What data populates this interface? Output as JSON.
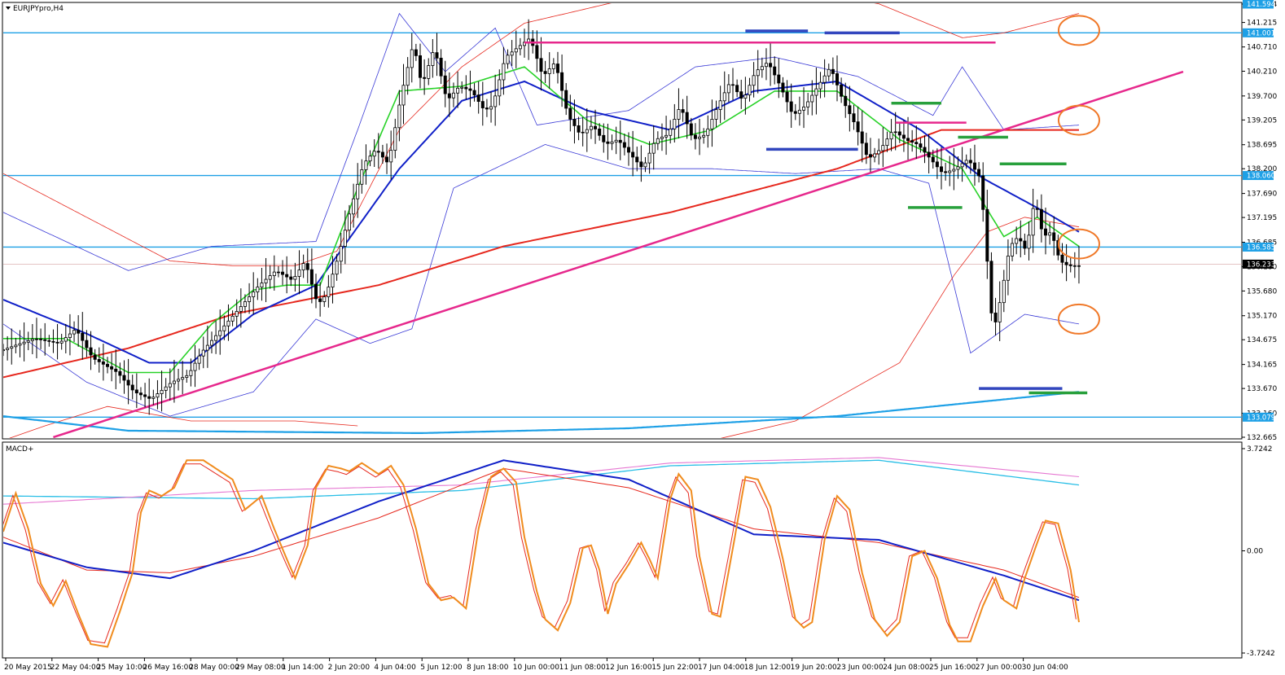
{
  "window": {
    "symbol_title": "EURJPYpro,H4",
    "sub_title": "MACD+"
  },
  "colors": {
    "bg": "#ffffff",
    "frame": "#000000",
    "level_line": "#1ea0e6",
    "price_tag": "#1ea0e6",
    "current_tag": "#000000",
    "bollinger": "#3a3ad6",
    "ma_red": "#e6281e",
    "ma_green": "#28d228",
    "ma_blue": "#1020c8",
    "trendline": "#e6288c",
    "zone_blue": "#3246be",
    "zone_green": "#28a03c",
    "circle": "#f07828",
    "macd_orange": "#f08c1e",
    "macd_red": "#e6281e",
    "macd_blue": "#1020c8",
    "macd_pink": "#e678d2",
    "macd_cyan": "#28bee6"
  },
  "chart_data": {
    "type": "candlestick",
    "title": "EURJPYpro,H4",
    "y_axis_labels": [
      "141.594",
      "141.215",
      "140.710",
      "140.210",
      "139.700",
      "139.205",
      "138.695",
      "138.200",
      "137.690",
      "137.195",
      "136.685",
      "136.180",
      "135.680",
      "135.170",
      "134.675",
      "134.165",
      "133.670",
      "133.160",
      "132.665"
    ],
    "ylim": [
      132.665,
      141.594
    ],
    "x_axis_labels": [
      "20 May 2015",
      "22 May 04:00",
      "25 May 10:00",
      "26 May 16:00",
      "28 May 00:00",
      "29 May 08:00",
      "1 Jun 14:00",
      "2 Jun 20:00",
      "4 Jun 04:00",
      "5 Jun 12:00",
      "8 Jun 18:00",
      "10 Jun 00:00",
      "11 Jun 08:00",
      "12 Jun 16:00",
      "15 Jun 22:00",
      "17 Jun 04:00",
      "18 Jun 12:00",
      "19 Jun 20:00",
      "23 Jun 00:00",
      "24 Jun 08:00",
      "25 Jun 16:00",
      "27 Jun 00:00",
      "30 Jun 04:00"
    ],
    "horizontal_levels": [
      {
        "value": 141.001,
        "label": "141.001"
      },
      {
        "value": 138.06,
        "label": "138.060"
      },
      {
        "value": 136.585,
        "label": "136.585"
      },
      {
        "value": 133.079,
        "label": "133.079"
      }
    ],
    "current_price": {
      "value": 136.233,
      "label": "136.233"
    },
    "top_price_tag": {
      "value": 141.594,
      "label": "141.594"
    },
    "candle_anchors": [
      [
        0,
        134.45
      ],
      [
        8,
        134.7
      ],
      [
        14,
        134.6
      ],
      [
        18,
        134.9
      ],
      [
        22,
        134.3
      ],
      [
        28,
        134.0
      ],
      [
        32,
        133.6
      ],
      [
        36,
        133.45
      ],
      [
        41,
        133.8
      ],
      [
        45,
        133.95
      ],
      [
        48,
        134.4
      ],
      [
        53,
        134.9
      ],
      [
        58,
        135.4
      ],
      [
        62,
        135.8
      ],
      [
        66,
        136.1
      ],
      [
        70,
        135.9
      ],
      [
        73,
        136.3
      ],
      [
        76,
        135.4
      ],
      [
        78,
        135.6
      ],
      [
        81,
        136.4
      ],
      [
        84,
        137.4
      ],
      [
        87,
        138.3
      ],
      [
        90,
        138.6
      ],
      [
        93,
        138.3
      ],
      [
        96,
        139.7
      ],
      [
        99,
        140.8
      ],
      [
        101,
        139.9
      ],
      [
        104,
        140.7
      ],
      [
        107,
        139.6
      ],
      [
        110,
        139.9
      ],
      [
        113,
        139.8
      ],
      [
        116,
        139.4
      ],
      [
        118,
        139.5
      ],
      [
        121,
        140.5
      ],
      [
        124,
        140.7
      ],
      [
        127,
        140.9
      ],
      [
        130,
        140.1
      ],
      [
        133,
        140.4
      ],
      [
        136,
        139.3
      ],
      [
        139,
        138.9
      ],
      [
        142,
        139.1
      ],
      [
        145,
        138.7
      ],
      [
        148,
        138.8
      ],
      [
        151,
        138.5
      ],
      [
        154,
        138.2
      ],
      [
        157,
        138.8
      ],
      [
        160,
        138.9
      ],
      [
        163,
        139.5
      ],
      [
        166,
        138.8
      ],
      [
        169,
        138.9
      ],
      [
        172,
        139.5
      ],
      [
        175,
        140.0
      ],
      [
        178,
        139.6
      ],
      [
        181,
        140.2
      ],
      [
        184,
        140.4
      ],
      [
        187,
        139.9
      ],
      [
        190,
        139.3
      ],
      [
        193,
        139.5
      ],
      [
        196,
        139.9
      ],
      [
        199,
        140.3
      ],
      [
        202,
        139.6
      ],
      [
        205,
        139.1
      ],
      [
        208,
        138.4
      ],
      [
        211,
        138.6
      ],
      [
        214,
        139.0
      ],
      [
        217,
        138.8
      ],
      [
        220,
        138.7
      ],
      [
        223,
        138.4
      ],
      [
        226,
        138.1
      ],
      [
        229,
        138.2
      ],
      [
        232,
        138.4
      ],
      [
        235,
        138.0
      ],
      [
        238,
        134.8
      ],
      [
        240,
        135.6
      ],
      [
        242,
        136.6
      ],
      [
        244,
        136.8
      ],
      [
        246,
        136.5
      ],
      [
        248,
        137.6
      ],
      [
        250,
        136.8
      ],
      [
        252,
        136.9
      ],
      [
        254,
        136.3
      ],
      [
        256,
        136.2
      ],
      [
        258,
        136.2
      ]
    ],
    "indicators": {
      "bollinger_upper": [
        [
          0,
          137.3
        ],
        [
          30,
          136.1
        ],
        [
          50,
          136.6
        ],
        [
          75,
          136.7
        ],
        [
          85,
          139.0
        ],
        [
          95,
          141.4
        ],
        [
          106,
          140.2
        ],
        [
          118,
          141.1
        ],
        [
          128,
          139.1
        ],
        [
          150,
          139.4
        ],
        [
          166,
          140.3
        ],
        [
          185,
          140.5
        ],
        [
          205,
          140.1
        ],
        [
          223,
          139.3
        ],
        [
          230,
          140.3
        ],
        [
          240,
          139.0
        ],
        [
          258,
          139.1
        ]
      ],
      "bollinger_lower": [
        [
          0,
          135.0
        ],
        [
          20,
          133.8
        ],
        [
          40,
          133.1
        ],
        [
          60,
          133.6
        ],
        [
          75,
          135.1
        ],
        [
          88,
          134.6
        ],
        [
          98,
          134.9
        ],
        [
          108,
          137.8
        ],
        [
          130,
          138.7
        ],
        [
          150,
          138.2
        ],
        [
          170,
          138.2
        ],
        [
          190,
          138.1
        ],
        [
          210,
          138.2
        ],
        [
          222,
          137.9
        ],
        [
          232,
          134.4
        ],
        [
          245,
          135.2
        ],
        [
          258,
          135.0
        ]
      ],
      "ma_red": [
        [
          0,
          133.9
        ],
        [
          30,
          134.5
        ],
        [
          55,
          135.2
        ],
        [
          90,
          135.8
        ],
        [
          120,
          136.6
        ],
        [
          160,
          137.3
        ],
        [
          200,
          138.2
        ],
        [
          225,
          139.0
        ],
        [
          258,
          139.0
        ]
      ],
      "ma_green": [
        [
          0,
          134.7
        ],
        [
          15,
          134.7
        ],
        [
          30,
          134.0
        ],
        [
          40,
          134.0
        ],
        [
          50,
          135.0
        ],
        [
          60,
          135.7
        ],
        [
          68,
          135.8
        ],
        [
          76,
          135.8
        ],
        [
          85,
          137.8
        ],
        [
          95,
          139.8
        ],
        [
          110,
          139.9
        ],
        [
          125,
          140.3
        ],
        [
          140,
          139.2
        ],
        [
          155,
          138.7
        ],
        [
          170,
          139.0
        ],
        [
          185,
          139.8
        ],
        [
          200,
          139.8
        ],
        [
          215,
          138.8
        ],
        [
          230,
          138.2
        ],
        [
          240,
          136.8
        ],
        [
          248,
          137.2
        ],
        [
          258,
          136.6
        ]
      ],
      "ma_blue": [
        [
          0,
          135.5
        ],
        [
          20,
          134.8
        ],
        [
          35,
          134.2
        ],
        [
          45,
          134.2
        ],
        [
          60,
          135.2
        ],
        [
          75,
          135.8
        ],
        [
          95,
          138.2
        ],
        [
          110,
          139.6
        ],
        [
          125,
          140.0
        ],
        [
          140,
          139.4
        ],
        [
          160,
          139.0
        ],
        [
          180,
          139.8
        ],
        [
          200,
          140.0
        ],
        [
          220,
          139.0
        ],
        [
          235,
          138.0
        ],
        [
          250,
          137.3
        ],
        [
          258,
          136.9
        ]
      ],
      "envelope_red": [
        [
          0,
          138.1
        ],
        [
          20,
          137.2
        ],
        [
          40,
          136.3
        ],
        [
          55,
          136.2
        ],
        [
          70,
          136.2
        ],
        [
          80,
          136.5
        ],
        [
          95,
          139.0
        ],
        [
          110,
          140.3
        ],
        [
          125,
          141.2
        ],
        [
          140,
          141.5
        ],
        [
          160,
          141.9
        ],
        [
          190,
          141.9
        ],
        [
          210,
          141.6
        ],
        [
          230,
          140.9
        ],
        [
          240,
          141.0
        ],
        [
          258,
          141.4
        ],
        [
          230,
          137.0
        ]
      ],
      "slow_ma_cyan": [
        [
          0,
          133.1
        ],
        [
          30,
          132.8
        ],
        [
          100,
          132.75
        ],
        [
          150,
          132.85
        ],
        [
          200,
          133.1
        ],
        [
          258,
          133.6
        ]
      ]
    },
    "drawing_annotations": {
      "trendline": {
        "from": [
          12,
          132.665
        ],
        "to": [
          283,
          140.2
        ]
      },
      "magenta_segments": [
        {
          "x": [
            125,
            238
          ],
          "y": 140.8
        },
        {
          "x": [
            214,
            231
          ],
          "y": 139.15
        }
      ],
      "blue_segments": [
        {
          "x": [
            178,
            193
          ],
          "y": 141.04
        },
        {
          "x": [
            197,
            215
          ],
          "y": 141.0
        },
        {
          "x": [
            183,
            205
          ],
          "y": 138.6
        },
        {
          "x": [
            234,
            254
          ],
          "y": 133.67
        }
      ],
      "green_segments": [
        {
          "x": [
            213,
            225
          ],
          "y": 139.55
        },
        {
          "x": [
            229,
            241
          ],
          "y": 138.85
        },
        {
          "x": [
            239,
            255
          ],
          "y": 138.3
        },
        {
          "x": [
            217,
            230
          ],
          "y": 137.4
        },
        {
          "x": [
            246,
            260
          ],
          "y": 133.58
        }
      ],
      "circles": [
        {
          "x": 258,
          "y": 141.05
        },
        {
          "x": 258,
          "y": 139.2
        },
        {
          "x": 258,
          "y": 136.65
        },
        {
          "x": 258,
          "y": 135.1
        }
      ]
    },
    "macd": {
      "y_axis_labels": [
        "3.7242",
        "0.00",
        "-3.7242"
      ],
      "ylim": [
        -3.7242,
        3.7242
      ],
      "fast_orange": [
        [
          0,
          0.7
        ],
        [
          3,
          2.1
        ],
        [
          6,
          0.8
        ],
        [
          9,
          -1.2
        ],
        [
          12,
          -2.0
        ],
        [
          15,
          -1.1
        ],
        [
          18,
          -2.3
        ],
        [
          21,
          -3.4
        ],
        [
          25,
          -3.5
        ],
        [
          28,
          -2.2
        ],
        [
          31,
          -0.8
        ],
        [
          33,
          1.4
        ],
        [
          35,
          2.2
        ],
        [
          38,
          2.0
        ],
        [
          41,
          2.3
        ],
        [
          44,
          3.3
        ],
        [
          48,
          3.3
        ],
        [
          51,
          3.0
        ],
        [
          55,
          2.6
        ],
        [
          58,
          1.5
        ],
        [
          62,
          2.0
        ],
        [
          65,
          0.8
        ],
        [
          68,
          -0.3
        ],
        [
          70,
          -1.0
        ],
        [
          73,
          0.2
        ],
        [
          75,
          2.3
        ],
        [
          78,
          3.1
        ],
        [
          81,
          3.0
        ],
        [
          83,
          2.9
        ],
        [
          86,
          3.2
        ],
        [
          90,
          2.8
        ],
        [
          93,
          3.1
        ],
        [
          96,
          2.4
        ],
        [
          99,
          0.8
        ],
        [
          102,
          -1.2
        ],
        [
          105,
          -1.8
        ],
        [
          108,
          -1.7
        ],
        [
          111,
          -2.1
        ],
        [
          114,
          0.8
        ],
        [
          117,
          2.7
        ],
        [
          120,
          3.0
        ],
        [
          123,
          2.5
        ],
        [
          125,
          0.5
        ],
        [
          128,
          -1.5
        ],
        [
          130,
          -2.5
        ],
        [
          133,
          -2.9
        ],
        [
          136,
          -1.9
        ],
        [
          139,
          0.1
        ],
        [
          141,
          0.2
        ],
        [
          143,
          -0.7
        ],
        [
          145,
          -2.3
        ],
        [
          147,
          -1.2
        ],
        [
          150,
          -0.5
        ],
        [
          153,
          0.3
        ],
        [
          155,
          -0.3
        ],
        [
          157,
          -1.0
        ],
        [
          160,
          1.9
        ],
        [
          162,
          2.8
        ],
        [
          165,
          2.2
        ],
        [
          167,
          -0.2
        ],
        [
          170,
          -2.3
        ],
        [
          172,
          -2.4
        ],
        [
          175,
          0.1
        ],
        [
          178,
          2.7
        ],
        [
          181,
          2.6
        ],
        [
          184,
          1.6
        ],
        [
          187,
          -0.3
        ],
        [
          190,
          -2.5
        ],
        [
          192,
          -2.8
        ],
        [
          194,
          -2.6
        ],
        [
          197,
          0.4
        ],
        [
          200,
          2.0
        ],
        [
          203,
          1.5
        ],
        [
          206,
          -0.8
        ],
        [
          209,
          -2.5
        ],
        [
          212,
          -3.1
        ],
        [
          215,
          -2.6
        ],
        [
          218,
          -0.2
        ],
        [
          221,
          0.0
        ],
        [
          224,
          -1.0
        ],
        [
          227,
          -2.7
        ],
        [
          229,
          -3.3
        ],
        [
          232,
          -3.3
        ],
        [
          235,
          -2.0
        ],
        [
          238,
          -1.0
        ],
        [
          240,
          -1.8
        ],
        [
          243,
          -2.1
        ],
        [
          245,
          -1.0
        ],
        [
          248,
          0.3
        ],
        [
          250,
          1.1
        ],
        [
          253,
          1.0
        ],
        [
          256,
          -0.7
        ],
        [
          258,
          -2.6
        ]
      ],
      "signal_red": [
        [
          0,
          0.5
        ],
        [
          20,
          -0.7
        ],
        [
          40,
          -0.8
        ],
        [
          60,
          -0.2
        ],
        [
          90,
          1.2
        ],
        [
          120,
          3.0
        ],
        [
          150,
          2.3
        ],
        [
          180,
          0.8
        ],
        [
          210,
          0.3
        ],
        [
          240,
          -0.7
        ],
        [
          258,
          -1.7
        ]
      ],
      "macd_blue": [
        [
          0,
          0.3
        ],
        [
          20,
          -0.6
        ],
        [
          40,
          -1.0
        ],
        [
          60,
          0.0
        ],
        [
          90,
          1.8
        ],
        [
          120,
          3.3
        ],
        [
          150,
          2.6
        ],
        [
          180,
          0.6
        ],
        [
          210,
          0.4
        ],
        [
          240,
          -0.9
        ],
        [
          258,
          -1.8
        ]
      ],
      "pink": [
        [
          0,
          1.7
        ],
        [
          60,
          2.2
        ],
        [
          110,
          2.4
        ],
        [
          160,
          3.2
        ],
        [
          210,
          3.4
        ],
        [
          258,
          2.7
        ]
      ],
      "cyan": [
        [
          0,
          2.0
        ],
        [
          60,
          1.9
        ],
        [
          110,
          2.2
        ],
        [
          160,
          3.1
        ],
        [
          210,
          3.3
        ],
        [
          258,
          2.4
        ]
      ]
    }
  }
}
